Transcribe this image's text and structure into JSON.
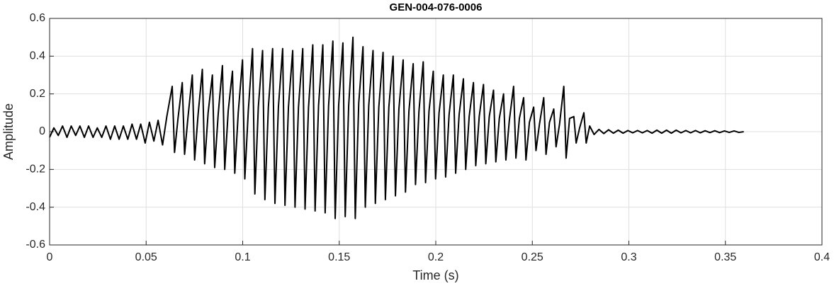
{
  "chart_data": {
    "type": "line",
    "title": "GEN-004-076-0006",
    "xlabel": "Time (s)",
    "ylabel": "Amplitude",
    "color": "#000000",
    "grid": true,
    "xlim": [
      0,
      0.4
    ],
    "xticks": [
      0,
      0.05,
      0.1,
      0.15,
      0.2,
      0.25,
      0.3,
      0.35,
      0.4
    ],
    "ylim": [
      -0.6,
      0.6
    ],
    "yticks": [
      -0.6,
      -0.4,
      -0.2,
      0,
      0.2,
      0.4,
      0.6
    ],
    "x": [
      0,
      0.0022,
      0.0045,
      0.0067,
      0.009,
      0.0112,
      0.0135,
      0.0157,
      0.018,
      0.0202,
      0.0225,
      0.0247,
      0.027,
      0.0292,
      0.0315,
      0.0337,
      0.036,
      0.0382,
      0.0405,
      0.0427,
      0.045,
      0.0472,
      0.0495,
      0.0517,
      0.054,
      0.0562,
      0.0585,
      0.0607,
      0.0635,
      0.0647,
      0.0665,
      0.0687,
      0.0699,
      0.0717,
      0.0739,
      0.0751,
      0.0769,
      0.0791,
      0.0803,
      0.0821,
      0.0843,
      0.0855,
      0.0873,
      0.0895,
      0.0907,
      0.0925,
      0.0947,
      0.0959,
      0.0977,
      0.0999,
      0.1011,
      0.1029,
      0.1051,
      0.1063,
      0.1081,
      0.1103,
      0.1115,
      0.1133,
      0.1155,
      0.1167,
      0.1185,
      0.1207,
      0.1219,
      0.1237,
      0.1259,
      0.1271,
      0.1289,
      0.1311,
      0.1323,
      0.1341,
      0.1363,
      0.1375,
      0.1393,
      0.1415,
      0.1427,
      0.1445,
      0.1467,
      0.1479,
      0.1497,
      0.1519,
      0.1531,
      0.1549,
      0.1571,
      0.1583,
      0.1601,
      0.1623,
      0.1635,
      0.1653,
      0.1675,
      0.1687,
      0.1705,
      0.1727,
      0.1739,
      0.1757,
      0.1779,
      0.1791,
      0.1809,
      0.1831,
      0.1843,
      0.1861,
      0.1883,
      0.1895,
      0.1913,
      0.1935,
      0.1947,
      0.1965,
      0.1987,
      0.1999,
      0.2017,
      0.2039,
      0.2051,
      0.2069,
      0.2091,
      0.2103,
      0.2121,
      0.2143,
      0.2155,
      0.2173,
      0.2195,
      0.2207,
      0.2225,
      0.2247,
      0.2259,
      0.2277,
      0.2299,
      0.2311,
      0.2329,
      0.2351,
      0.2363,
      0.2381,
      0.2403,
      0.2415,
      0.2433,
      0.2455,
      0.2467,
      0.2485,
      0.2507,
      0.2519,
      0.2537,
      0.2559,
      0.2571,
      0.2589,
      0.2611,
      0.2623,
      0.2641,
      0.2663,
      0.2675,
      0.2693,
      0.2715,
      0.2727,
      0.2745,
      0.2767,
      0.2779,
      0.2797,
      0.282,
      0.2845,
      0.287,
      0.2895,
      0.292,
      0.2945,
      0.297,
      0.2995,
      0.302,
      0.3045,
      0.307,
      0.3095,
      0.312,
      0.3145,
      0.317,
      0.3195,
      0.322,
      0.3245,
      0.327,
      0.3295,
      0.332,
      0.3345,
      0.337,
      0.3395,
      0.342,
      0.3445,
      0.347,
      0.3495,
      0.352,
      0.3545,
      0.357,
      0.3595
    ],
    "values": [
      -0.03,
      0.02,
      -0.02,
      0.03,
      -0.03,
      0.03,
      -0.02,
      0.03,
      -0.03,
      0.03,
      -0.03,
      0.02,
      -0.03,
      0.03,
      -0.04,
      0.03,
      -0.04,
      0.03,
      -0.04,
      0.04,
      -0.04,
      0.04,
      -0.06,
      0.05,
      -0.05,
      0.06,
      -0.07,
      0.08,
      0.24,
      -0.11,
      0.07,
      0.26,
      -0.12,
      0.08,
      0.3,
      -0.15,
      0.09,
      0.33,
      -0.17,
      0.1,
      0.3,
      -0.19,
      0.09,
      0.35,
      -0.2,
      0.11,
      0.32,
      -0.22,
      0.1,
      0.38,
      -0.25,
      0.11,
      0.44,
      -0.33,
      0.13,
      0.43,
      -0.36,
      0.13,
      0.44,
      -0.38,
      0.13,
      0.44,
      -0.39,
      0.13,
      0.43,
      -0.4,
      0.13,
      0.44,
      -0.41,
      0.13,
      0.46,
      -0.42,
      0.14,
      0.46,
      -0.43,
      0.14,
      0.48,
      -0.46,
      0.14,
      0.47,
      -0.45,
      0.14,
      0.5,
      -0.46,
      0.15,
      0.45,
      -0.4,
      0.14,
      0.43,
      -0.38,
      0.13,
      0.42,
      -0.36,
      0.13,
      0.4,
      -0.34,
      0.12,
      0.38,
      -0.32,
      0.11,
      0.36,
      -0.28,
      0.11,
      0.37,
      -0.27,
      0.11,
      0.32,
      -0.25,
      0.1,
      0.3,
      -0.24,
      0.09,
      0.3,
      -0.22,
      0.09,
      0.28,
      -0.2,
      0.08,
      0.26,
      -0.18,
      0.08,
      0.25,
      -0.17,
      0.08,
      0.22,
      -0.16,
      0.07,
      0.2,
      -0.15,
      0.06,
      0.24,
      -0.14,
      0.07,
      0.18,
      -0.15,
      0.05,
      0.13,
      -0.1,
      0.04,
      0.18,
      -0.12,
      0.05,
      0.12,
      -0.08,
      0.04,
      0.24,
      -0.14,
      0.07,
      0.08,
      -0.06,
      0.02,
      0.1,
      -0.06,
      0.03,
      -0.015,
      0.012,
      -0.01,
      0.01,
      -0.008,
      0.008,
      -0.008,
      0.006,
      -0.006,
      0.006,
      -0.006,
      0.006,
      -0.008,
      0.008,
      -0.008,
      0.008,
      -0.008,
      0.008,
      -0.006,
      0.006,
      -0.006,
      0.006,
      -0.006,
      0.005,
      -0.005,
      0.005,
      -0.005,
      0.004,
      -0.004,
      0.004,
      -0.004,
      0
    ]
  }
}
